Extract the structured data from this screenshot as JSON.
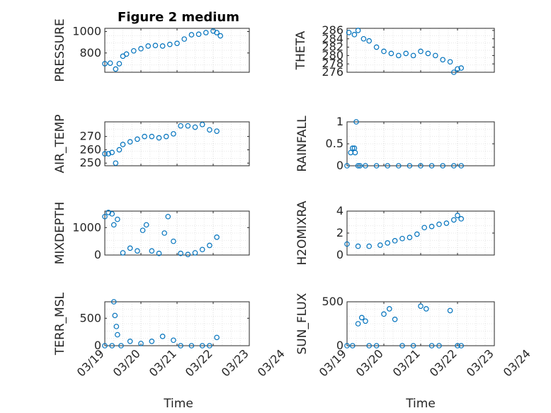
{
  "figure": {
    "title": "Figure 2 medium",
    "xlabel": "Time"
  },
  "colors": {
    "marker": "#0072BD",
    "axis": "#262626",
    "grid": "#d9d9d9"
  },
  "chart_data": [
    {
      "type": "scatter",
      "name": "PRESSURE",
      "ylabel": "PRESSURE",
      "ylim": [
        620,
        1030
      ],
      "yticks": [
        800,
        1000
      ],
      "ytick_labels": [
        "800",
        "1000"
      ],
      "xlim": [
        0,
        4
      ],
      "xticks_shown": false,
      "x": [
        0,
        0.15,
        0.3,
        0.4,
        0.5,
        0.6,
        0.8,
        1.0,
        1.2,
        1.4,
        1.6,
        1.8,
        2.0,
        2.2,
        2.4,
        2.6,
        2.8,
        3.0,
        3.1,
        3.2
      ],
      "y": [
        700,
        705,
        650,
        700,
        770,
        790,
        820,
        840,
        865,
        870,
        865,
        880,
        890,
        930,
        970,
        975,
        990,
        1005,
        990,
        960
      ]
    },
    {
      "type": "scatter",
      "name": "THETA",
      "ylabel": "THETA",
      "ylim": [
        276,
        286.5
      ],
      "yticks": [
        276,
        278,
        280,
        282,
        284,
        286
      ],
      "ytick_labels": [
        "276",
        "278",
        "280",
        "282",
        "284",
        "286"
      ],
      "xlim": [
        0,
        4
      ],
      "xticks_shown": false,
      "x": [
        0.05,
        0.2,
        0.3,
        0.45,
        0.6,
        0.8,
        1.0,
        1.2,
        1.4,
        1.6,
        1.8,
        2.0,
        2.2,
        2.4,
        2.6,
        2.8,
        2.9,
        3.0,
        3.1
      ],
      "y": [
        285.5,
        285.0,
        286.0,
        284.0,
        283.5,
        282.0,
        281.0,
        280.5,
        280.0,
        280.5,
        280.0,
        281.0,
        280.5,
        280.0,
        279.0,
        278.5,
        276.0,
        276.8,
        277.0
      ]
    },
    {
      "type": "scatter",
      "name": "AIR_TEMP",
      "ylabel": "AIR_TEMP",
      "ylim": [
        248,
        281
      ],
      "yticks": [
        250,
        260,
        270
      ],
      "ytick_labels": [
        "250",
        "260",
        "270"
      ],
      "xlim": [
        0,
        4
      ],
      "xticks_shown": false,
      "x": [
        0,
        0.1,
        0.2,
        0.3,
        0.4,
        0.5,
        0.7,
        0.9,
        1.1,
        1.3,
        1.5,
        1.7,
        1.9,
        2.1,
        2.3,
        2.5,
        2.7,
        2.9,
        3.1
      ],
      "y": [
        257,
        257,
        258,
        250,
        260,
        264,
        266,
        268,
        270,
        270,
        269,
        270,
        272,
        278,
        278,
        277,
        279,
        275,
        274
      ]
    },
    {
      "type": "scatter",
      "name": "RAINFALL",
      "ylabel": "RAINFALL",
      "ylim": [
        0,
        1
      ],
      "yticks": [
        0,
        0.5,
        1
      ],
      "ytick_labels": [
        "0",
        "0.5",
        "1"
      ],
      "xlim": [
        0,
        4
      ],
      "xticks_shown": false,
      "x": [
        0.0,
        0.1,
        0.15,
        0.2,
        0.22,
        0.25,
        0.3,
        0.35,
        0.5,
        0.8,
        1.1,
        1.4,
        1.7,
        2.0,
        2.3,
        2.6,
        2.9,
        3.1
      ],
      "y": [
        0,
        0.3,
        0.4,
        0.4,
        0.3,
        1.0,
        0,
        0,
        0,
        0,
        0,
        0,
        0,
        0,
        0,
        0,
        0,
        0
      ]
    },
    {
      "type": "scatter",
      "name": "MIXDEPTH",
      "ylabel": "MIXDEPTH",
      "ylim": [
        0,
        1600
      ],
      "yticks": [
        0,
        1000
      ],
      "ytick_labels": [
        "0",
        "1000"
      ],
      "xlim": [
        0,
        4
      ],
      "xticks_shown": false,
      "x": [
        0,
        0.1,
        0.2,
        0.25,
        0.35,
        0.5,
        0.7,
        0.9,
        1.05,
        1.15,
        1.3,
        1.5,
        1.65,
        1.75,
        1.9,
        2.1,
        2.3,
        2.5,
        2.7,
        2.9,
        3.1
      ],
      "y": [
        1400,
        1550,
        1500,
        1100,
        1300,
        80,
        250,
        150,
        900,
        1100,
        150,
        60,
        800,
        1400,
        500,
        60,
        20,
        80,
        200,
        350,
        650
      ]
    },
    {
      "type": "scatter",
      "name": "H2OMIXRA",
      "ylabel": "H2OMIXRA",
      "ylim": [
        0,
        4
      ],
      "yticks": [
        0,
        2,
        4
      ],
      "ytick_labels": [
        "0",
        "2",
        "4"
      ],
      "xlim": [
        0,
        4
      ],
      "xticks_shown": false,
      "x": [
        0.0,
        0.3,
        0.6,
        0.9,
        1.1,
        1.3,
        1.5,
        1.7,
        1.9,
        2.1,
        2.3,
        2.5,
        2.7,
        2.9,
        3.0,
        3.1
      ],
      "y": [
        1.0,
        0.8,
        0.8,
        0.9,
        1.1,
        1.3,
        1.5,
        1.6,
        1.9,
        2.5,
        2.6,
        2.8,
        2.9,
        3.2,
        3.6,
        3.3
      ]
    },
    {
      "type": "scatter",
      "name": "TERR_MSL",
      "ylabel": "TERR_MSL",
      "ylim": [
        0,
        800
      ],
      "yticks": [
        0,
        500
      ],
      "ytick_labels": [
        "0",
        "500"
      ],
      "xlim": [
        0,
        4
      ],
      "xticks_shown": true,
      "x": [
        0.0,
        0.2,
        0.25,
        0.28,
        0.32,
        0.35,
        0.45,
        0.7,
        1.0,
        1.3,
        1.6,
        1.9,
        2.1,
        2.4,
        2.7,
        2.9,
        3.1
      ],
      "y": [
        0,
        0,
        800,
        550,
        350,
        200,
        0,
        80,
        40,
        80,
        170,
        100,
        0,
        0,
        0,
        0,
        150
      ]
    },
    {
      "type": "scatter",
      "name": "SUN_FLUX",
      "ylabel": "SUN_FLUX",
      "ylim": [
        0,
        500
      ],
      "yticks": [
        0,
        500
      ],
      "ytick_labels": [
        "0",
        "500"
      ],
      "xlim": [
        0,
        4
      ],
      "xticks_shown": true,
      "x": [
        0.0,
        0.15,
        0.3,
        0.4,
        0.5,
        0.6,
        0.8,
        1.0,
        1.15,
        1.3,
        1.5,
        1.8,
        2.0,
        2.15,
        2.3,
        2.5,
        2.8,
        3.0,
        3.1
      ],
      "y": [
        0,
        0,
        250,
        320,
        280,
        0,
        0,
        360,
        420,
        300,
        0,
        0,
        450,
        420,
        0,
        0,
        400,
        0,
        0
      ]
    }
  ],
  "x_axis": {
    "tick_labels": [
      "03/19",
      "03/20",
      "03/21",
      "03/22",
      "03/23",
      "03/24"
    ]
  }
}
